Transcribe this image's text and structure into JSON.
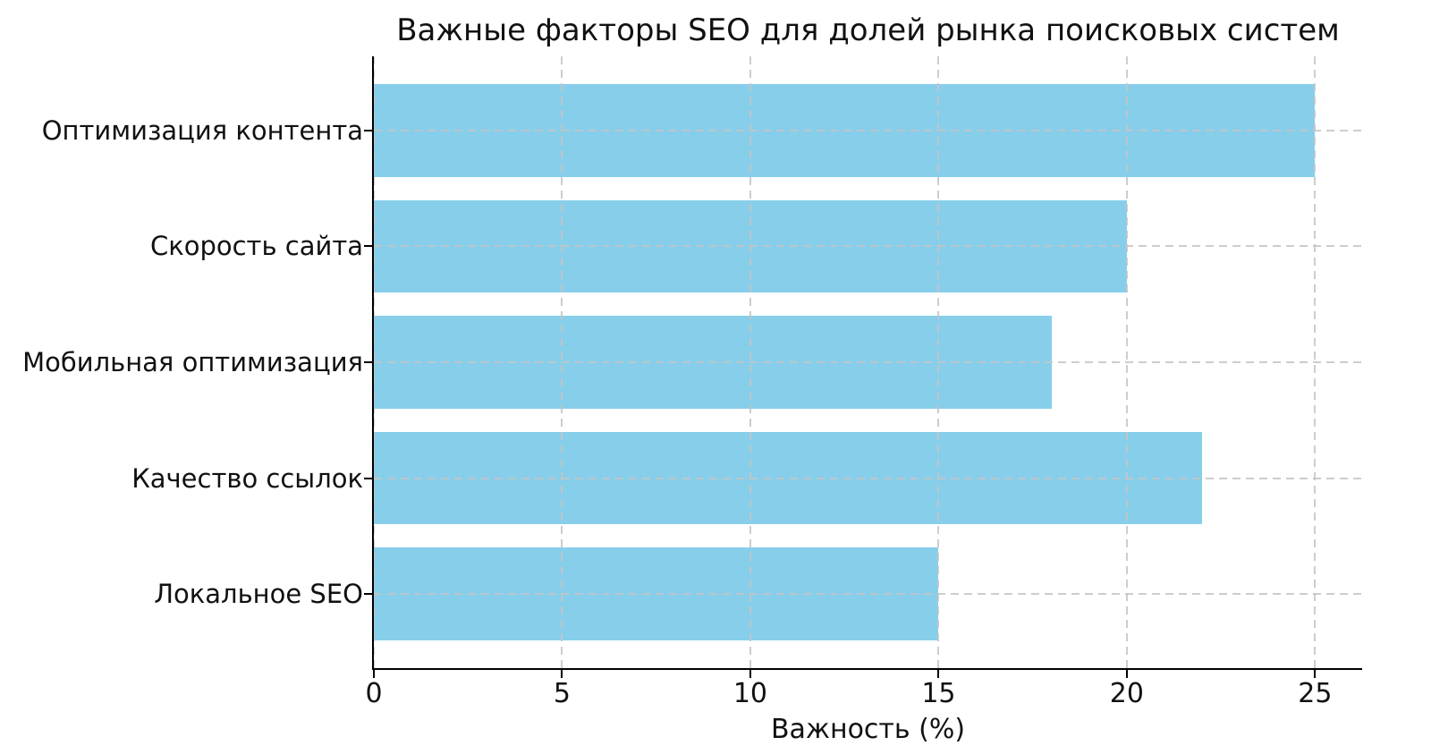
{
  "chart_data": {
    "type": "bar",
    "orientation": "horizontal",
    "title": "Важные факторы SEO для долей рынка поисковых систем",
    "categories": [
      "Оптимизация контента",
      "Скорость сайта",
      "Мобильная оптимизация",
      "Качество ссылок",
      "Локальное SEO"
    ],
    "values": [
      25,
      20,
      18,
      22,
      15
    ],
    "xlabel": "Важность (%)",
    "ylabel": "",
    "xlim": [
      0,
      26.25
    ],
    "xticks": [
      0,
      5,
      10,
      15,
      20,
      25
    ],
    "grid": true,
    "grid_style": "dashed",
    "grid_on_top_of_bars": true,
    "legend": "none",
    "bar_color": "#87CEEB",
    "background_color": "#FFFFFF",
    "text_color": "#111111",
    "grid_color": "#C4C4C4",
    "spine_color": "#000000"
  }
}
